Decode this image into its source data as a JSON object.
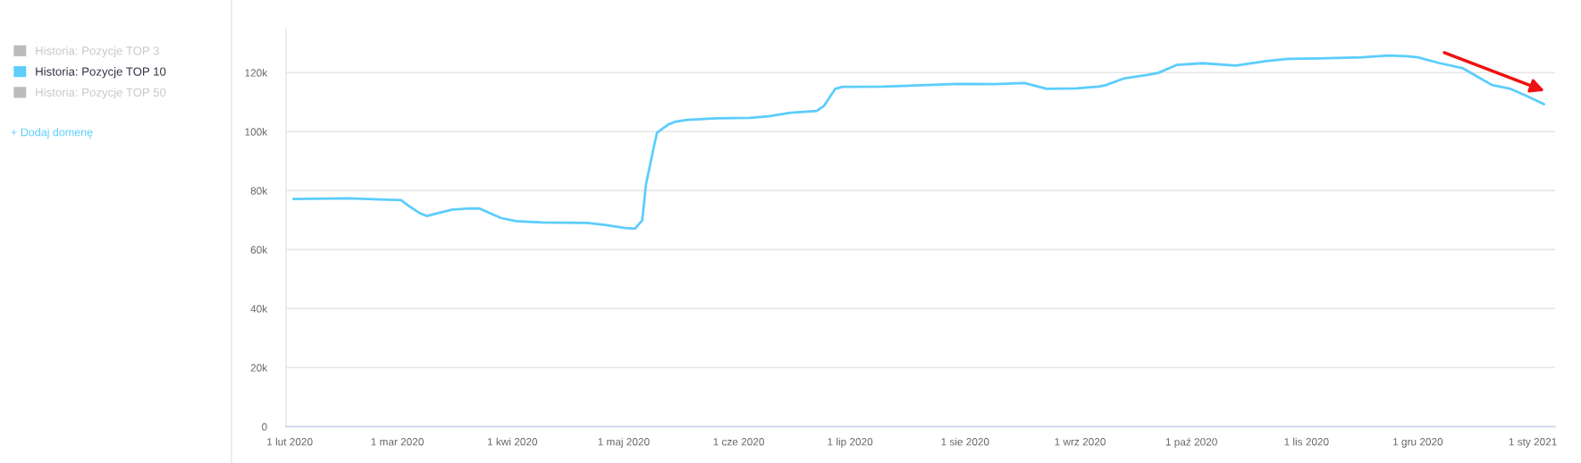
{
  "chart_data": {
    "type": "line",
    "x": [
      "2020-02-02",
      "2020-02-17",
      "2020-02-25",
      "2020-03-02",
      "2020-03-04",
      "2020-03-07",
      "2020-03-09",
      "2020-03-12",
      "2020-03-16",
      "2020-03-20",
      "2020-03-23",
      "2020-03-25",
      "2020-03-29",
      "2020-04-02",
      "2020-04-09",
      "2020-04-21",
      "2020-04-26",
      "2020-05-01",
      "2020-05-04",
      "2020-05-06",
      "2020-05-07",
      "2020-05-09",
      "2020-05-10",
      "2020-05-13",
      "2020-05-15",
      "2020-05-18",
      "2020-05-26",
      "2020-06-04",
      "2020-06-09",
      "2020-06-15",
      "2020-06-22",
      "2020-06-24",
      "2020-06-27",
      "2020-06-29",
      "2020-07-10",
      "2020-07-22",
      "2020-07-30",
      "2020-08-09",
      "2020-08-17",
      "2020-08-23",
      "2020-08-31",
      "2020-09-06",
      "2020-09-08",
      "2020-09-13",
      "2020-09-19",
      "2020-09-22",
      "2020-09-27",
      "2020-10-04",
      "2020-10-13",
      "2020-10-21",
      "2020-10-27",
      "2020-11-04",
      "2020-11-16",
      "2020-11-23",
      "2020-11-28",
      "2020-12-01",
      "2020-12-07",
      "2020-12-13",
      "2020-12-16",
      "2020-12-21",
      "2020-12-26",
      "2020-12-30",
      "2021-01-04"
    ],
    "series": [
      {
        "name": "Historia: Pozycje TOP 3",
        "color": "#bbbbbb",
        "values": [
          null,
          null,
          null,
          null,
          null,
          null,
          null,
          null,
          null,
          null,
          null,
          null,
          null,
          null,
          null,
          null,
          null,
          null,
          null,
          null,
          null,
          null,
          null,
          null,
          null,
          null,
          null,
          null,
          null,
          null,
          null,
          null,
          null,
          null,
          null,
          null,
          null,
          null,
          null,
          null,
          null,
          null,
          null,
          null,
          null,
          null,
          null,
          null,
          null,
          null,
          null,
          null,
          null,
          null,
          null,
          null,
          null,
          null,
          null,
          null,
          null,
          null,
          null
        ]
      },
      {
        "name": "Historia: Pozycje TOP 10",
        "color": "#5ccdfc",
        "values": [
          77200,
          77400,
          77000,
          76800,
          74900,
          72400,
          71400,
          72400,
          73600,
          73900,
          74000,
          72900,
          70700,
          69700,
          69200,
          69100,
          68400,
          67400,
          67100,
          69900,
          82000,
          94100,
          99700,
          102400,
          103400,
          104000,
          104500,
          104700,
          105200,
          106400,
          107000,
          108800,
          114500,
          115200,
          115300,
          115800,
          116200,
          116100,
          116500,
          114500,
          114700,
          115300,
          115800,
          118100,
          119200,
          119900,
          122600,
          123200,
          122400,
          123900,
          124700,
          124800,
          125200,
          125800,
          125600,
          125200,
          123200,
          121600,
          119400,
          115800,
          114500,
          112300,
          109300
        ]
      },
      {
        "name": "Historia: Pozycje TOP 50",
        "color": "#bbbbbb",
        "values": [
          null,
          null,
          null,
          null,
          null,
          null,
          null,
          null,
          null,
          null,
          null,
          null,
          null,
          null,
          null,
          null,
          null,
          null,
          null,
          null,
          null,
          null,
          null,
          null,
          null,
          null,
          null,
          null,
          null,
          null,
          null,
          null,
          null,
          null,
          null,
          null,
          null,
          null,
          null,
          null,
          null,
          null,
          null,
          null,
          null,
          null,
          null,
          null,
          null,
          null,
          null,
          null,
          null,
          null,
          null,
          null,
          null,
          null,
          null,
          null,
          null,
          null,
          null
        ]
      }
    ],
    "xlim": [
      "2020-01-31",
      "2021-01-07"
    ],
    "xticks": [
      {
        "value": "2020-02-01",
        "label": "1 lut 2020"
      },
      {
        "value": "2020-03-01",
        "label": "1 mar 2020"
      },
      {
        "value": "2020-04-01",
        "label": "1 kwi 2020"
      },
      {
        "value": "2020-05-01",
        "label": "1 maj 2020"
      },
      {
        "value": "2020-06-01",
        "label": "1 cze 2020"
      },
      {
        "value": "2020-07-01",
        "label": "1 lip 2020"
      },
      {
        "value": "2020-08-01",
        "label": "1 sie 2020"
      },
      {
        "value": "2020-09-01",
        "label": "1 wrz 2020"
      },
      {
        "value": "2020-10-01",
        "label": "1 paź 2020"
      },
      {
        "value": "2020-11-01",
        "label": "1 lis 2020"
      },
      {
        "value": "2020-12-01",
        "label": "1 gru 2020"
      },
      {
        "value": "2021-01-01",
        "label": "1 sty 2021"
      }
    ],
    "ylim": [
      0,
      135000
    ],
    "yticks": [
      0,
      {
        "value": 20000,
        "label": "20k"
      },
      {
        "value": 40000,
        "label": "40k"
      },
      {
        "value": 60000,
        "label": "60k"
      },
      {
        "value": 80000,
        "label": "80k"
      },
      {
        "value": 100000,
        "label": "100k"
      },
      {
        "value": 120000,
        "label": "120k"
      }
    ],
    "grid": "y",
    "legend": "left",
    "line_style": "solid",
    "annotations": [
      "+ Dodaj domenę"
    ]
  }
}
